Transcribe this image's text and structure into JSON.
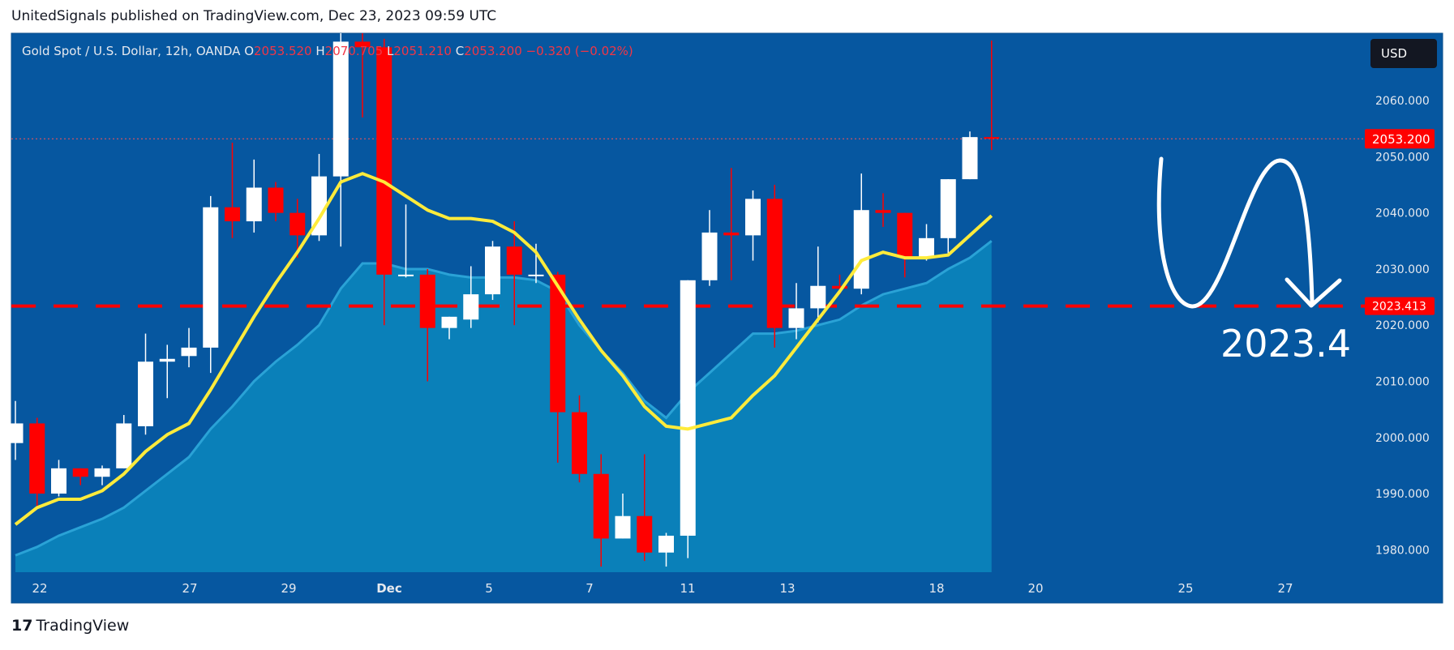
{
  "header": {
    "published": "UnitedSignals published on TradingView.com, Dec 23, 2023 09:59 UTC"
  },
  "legend": {
    "symbol": "Gold Spot / U.S. Dollar, 12h, OANDA",
    "o_label": "O",
    "o": "2053.520",
    "h_label": "H",
    "h": "2070.705",
    "l_label": "L",
    "l": "2051.210",
    "c_label": "C",
    "c": "2053.200",
    "change": "−0.320 (−0.02%)"
  },
  "currency": "USD",
  "footer": {
    "logo": "TradingView"
  },
  "colors": {
    "background": "#0657a0",
    "up": "#ffffff",
    "down": "#ff0000",
    "ma_fast": "#ffeb3b",
    "area_fill": "#0c87bd",
    "support_line": "#ff0000",
    "price_tag": "#ff0000",
    "annotation": "#ffffff"
  },
  "chart_data": {
    "type": "candlestick",
    "ylim": [
      1976,
      2072
    ],
    "y_ticks": [
      "2060.000",
      "2050.000",
      "2040.000",
      "2030.000",
      "2020.000",
      "2010.000",
      "2000.000",
      "1990.000",
      "1980.000"
    ],
    "x_ticks": [
      "22",
      "27",
      "29",
      "Dec",
      "5",
      "7",
      "11",
      "13",
      "18",
      "20",
      "25",
      "27"
    ],
    "last_price_label": "2053.200",
    "support_level": 2023.413,
    "support_label": "2023.413",
    "annotation_text": "2023.4",
    "candles": [
      {
        "o": 1999.0,
        "h": 2006.5,
        "l": 1996.0,
        "c": 2002.5
      },
      {
        "o": 2002.5,
        "h": 2003.5,
        "l": 1987.5,
        "c": 1990.0
      },
      {
        "o": 1990.0,
        "h": 1996.0,
        "l": 1989.5,
        "c": 1994.5
      },
      {
        "o": 1994.5,
        "h": 1994.5,
        "l": 1991.5,
        "c": 1993.0
      },
      {
        "o": 1993.0,
        "h": 1995.0,
        "l": 1991.5,
        "c": 1994.5
      },
      {
        "o": 1994.5,
        "h": 2004.0,
        "l": 1994.5,
        "c": 2002.5
      },
      {
        "o": 2002.0,
        "h": 2018.5,
        "l": 2000.5,
        "c": 2013.5
      },
      {
        "o": 2013.5,
        "h": 2016.5,
        "l": 2007.0,
        "c": 2014.0
      },
      {
        "o": 2014.5,
        "h": 2019.5,
        "l": 2012.5,
        "c": 2016.0
      },
      {
        "o": 2016.0,
        "h": 2043.0,
        "l": 2011.5,
        "c": 2041.0
      },
      {
        "o": 2041.0,
        "h": 2052.5,
        "l": 2035.5,
        "c": 2038.5
      },
      {
        "o": 2038.5,
        "h": 2049.5,
        "l": 2036.5,
        "c": 2044.5
      },
      {
        "o": 2044.5,
        "h": 2045.5,
        "l": 2038.5,
        "c": 2040.0
      },
      {
        "o": 2040.0,
        "h": 2042.5,
        "l": 2032.0,
        "c": 2036.0
      },
      {
        "o": 2036.0,
        "h": 2050.5,
        "l": 2035.0,
        "c": 2046.5
      },
      {
        "o": 2046.5,
        "h": 2072.0,
        "l": 2034.0,
        "c": 2070.5
      },
      {
        "o": 2070.5,
        "h": 2072.0,
        "l": 2057.0,
        "c": 2069.5
      },
      {
        "o": 2069.5,
        "h": 2071.0,
        "l": 2020.0,
        "c": 2029.0
      },
      {
        "o": 2029.0,
        "h": 2041.5,
        "l": 2028.5,
        "c": 2029.0
      },
      {
        "o": 2029.0,
        "h": 2030.0,
        "l": 2010.0,
        "c": 2019.5
      },
      {
        "o": 2019.5,
        "h": 2021.5,
        "l": 2017.5,
        "c": 2021.5
      },
      {
        "o": 2021.0,
        "h": 2030.5,
        "l": 2019.5,
        "c": 2025.5
      },
      {
        "o": 2025.5,
        "h": 2035.0,
        "l": 2024.5,
        "c": 2034.0
      },
      {
        "o": 2034.0,
        "h": 2038.5,
        "l": 2020.0,
        "c": 2029.0
      },
      {
        "o": 2029.0,
        "h": 2034.5,
        "l": 2027.5,
        "c": 2029.0
      },
      {
        "o": 2029.0,
        "h": 2029.5,
        "l": 1995.5,
        "c": 2004.5
      },
      {
        "o": 2004.5,
        "h": 2007.5,
        "l": 1992.0,
        "c": 1993.5
      },
      {
        "o": 1993.5,
        "h": 1997.0,
        "l": 1977.0,
        "c": 1982.0
      },
      {
        "o": 1982.0,
        "h": 1990.0,
        "l": 1982.0,
        "c": 1986.0
      },
      {
        "o": 1986.0,
        "h": 1997.0,
        "l": 1978.0,
        "c": 1979.5
      },
      {
        "o": 1979.5,
        "h": 1983.0,
        "l": 1977.0,
        "c": 1982.5
      },
      {
        "o": 1982.5,
        "h": 2028.0,
        "l": 1978.5,
        "c": 2028.0
      },
      {
        "o": 2028.0,
        "h": 2040.5,
        "l": 2027.0,
        "c": 2036.5
      },
      {
        "o": 2036.5,
        "h": 2048.0,
        "l": 2028.0,
        "c": 2036.0
      },
      {
        "o": 2036.0,
        "h": 2044.0,
        "l": 2031.5,
        "c": 2042.5
      },
      {
        "o": 2042.5,
        "h": 2045.0,
        "l": 2016.0,
        "c": 2019.5
      },
      {
        "o": 2019.5,
        "h": 2027.5,
        "l": 2017.5,
        "c": 2023.0
      },
      {
        "o": 2023.0,
        "h": 2034.0,
        "l": 2020.5,
        "c": 2027.0
      },
      {
        "o": 2027.0,
        "h": 2029.0,
        "l": 2025.5,
        "c": 2026.5
      },
      {
        "o": 2026.5,
        "h": 2047.0,
        "l": 2025.5,
        "c": 2040.5
      },
      {
        "o": 2040.5,
        "h": 2043.5,
        "l": 2037.5,
        "c": 2040.0
      },
      {
        "o": 2040.0,
        "h": 2040.0,
        "l": 2028.5,
        "c": 2032.0
      },
      {
        "o": 2032.0,
        "h": 2038.0,
        "l": 2031.5,
        "c": 2035.5
      },
      {
        "o": 2035.5,
        "h": 2046.0,
        "l": 2032.5,
        "c": 2046.0
      },
      {
        "o": 2046.0,
        "h": 2054.5,
        "l": 2046.0,
        "c": 2053.5
      },
      {
        "o": 2053.5,
        "h": 2070.7,
        "l": 2051.2,
        "c": 2053.2
      }
    ],
    "ma_fast": [
      1984.5,
      1987.5,
      1989.0,
      1989.0,
      1990.5,
      1993.5,
      1997.5,
      2000.5,
      2002.5,
      2008.5,
      2015.0,
      2021.5,
      2027.5,
      2033.0,
      2039.0,
      2045.5,
      2047.0,
      2045.5,
      2043.0,
      2040.5,
      2039.0,
      2039.0,
      2038.5,
      2036.5,
      2033.0,
      2027.0,
      2021.0,
      2015.5,
      2011.0,
      2005.5,
      2002.0,
      2001.5,
      2002.5,
      2003.5,
      2007.5,
      2011.0,
      2016.0,
      2021.0,
      2026.0,
      2031.5,
      2033.0,
      2032.0,
      2032.0,
      2032.5,
      2036.0,
      2039.5
    ],
    "area_line": [
      1979.0,
      1980.5,
      1982.5,
      1984.0,
      1985.5,
      1987.5,
      1990.5,
      1993.5,
      1996.5,
      2001.5,
      2005.5,
      2010.0,
      2013.5,
      2016.5,
      2020.0,
      2026.5,
      2031.0,
      2031.0,
      2030.0,
      2030.0,
      2029.0,
      2028.5,
      2028.5,
      2028.5,
      2028.0,
      2026.0,
      2020.0,
      2015.5,
      2011.5,
      2006.5,
      2003.5,
      2008.0,
      2011.5,
      2015.0,
      2018.5,
      2018.5,
      2019.0,
      2020.0,
      2021.0,
      2023.5,
      2025.5,
      2026.5,
      2027.5,
      2030.0,
      2032.0,
      2035.0
    ]
  }
}
